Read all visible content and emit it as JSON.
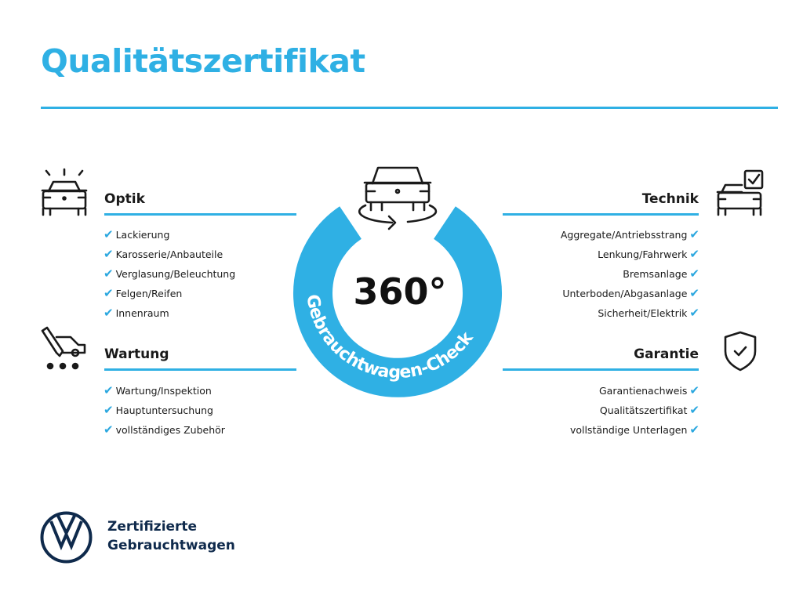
{
  "title": "Qualitätszertifikat",
  "badge": {
    "number": "360°",
    "ring_text": "Gebrauchtwagen-Check",
    "ring_color": "#2fb0e4"
  },
  "sections": {
    "optik": {
      "heading": "Optik",
      "icon": "car-lights-icon",
      "items": [
        "Lackierung",
        "Karosserie/Anbauteile",
        "Verglasung/Beleuchtung",
        "Felgen/Reifen",
        "Innenraum"
      ]
    },
    "wartung": {
      "heading": "Wartung",
      "icon": "service-car-icon",
      "items": [
        "Wartung/Inspektion",
        "Hauptuntersuchung",
        "vollständiges Zubehör"
      ]
    },
    "technik": {
      "heading": "Technik",
      "icon": "car-checkbox-icon",
      "items": [
        "Aggregate/Antriebsstrang",
        "Lenkung/Fahrwerk",
        "Bremsanlage",
        "Unterboden/Abgasanlage",
        "Sicherheit/Elektrik"
      ]
    },
    "garantie": {
      "heading": "Garantie",
      "icon": "shield-check-icon",
      "items": [
        "Garantienachweis",
        "Qualitätszertifikat",
        "vollständige Unterlagen"
      ]
    }
  },
  "check_mark": "✔",
  "brand": {
    "line1": "Zertifizierte",
    "line2": "Gebrauchtwagen",
    "color": "#0f2a4c"
  }
}
